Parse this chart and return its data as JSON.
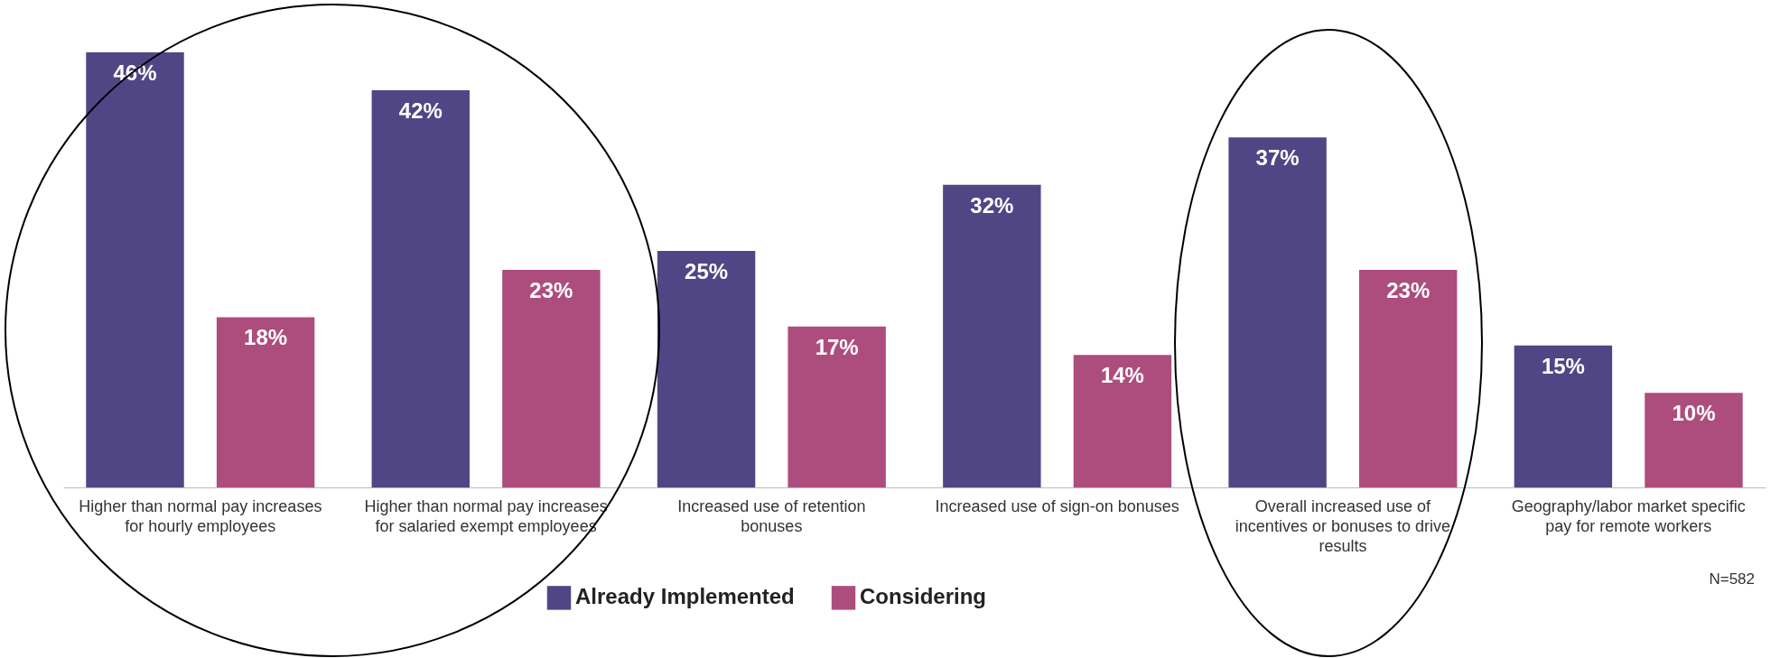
{
  "chart_data": {
    "type": "bar",
    "categories": [
      "Higher than normal pay increases for hourly employees",
      "Higher than normal pay increases for salaried exempt employees",
      "Increased use of retention bonuses",
      "Increased use of sign-on bonuses",
      "Overall increased use of incentives or bonuses to drive results",
      "Geography/labor market specific pay for remote workers"
    ],
    "series": [
      {
        "name": "Already Implemented",
        "color": "#514685",
        "values": [
          46,
          42,
          25,
          32,
          37,
          15
        ],
        "value_labels": [
          "46%",
          "42%",
          "25%",
          "32%",
          "37%",
          "15%"
        ]
      },
      {
        "name": "Considering",
        "color": "#ad4d7d",
        "values": [
          18,
          23,
          17,
          14,
          23,
          10
        ],
        "value_labels": [
          "18%",
          "23%",
          "17%",
          "14%",
          "23%",
          "10%"
        ]
      }
    ],
    "legend": "bottom",
    "annotations": [
      "N=582"
    ]
  }
}
